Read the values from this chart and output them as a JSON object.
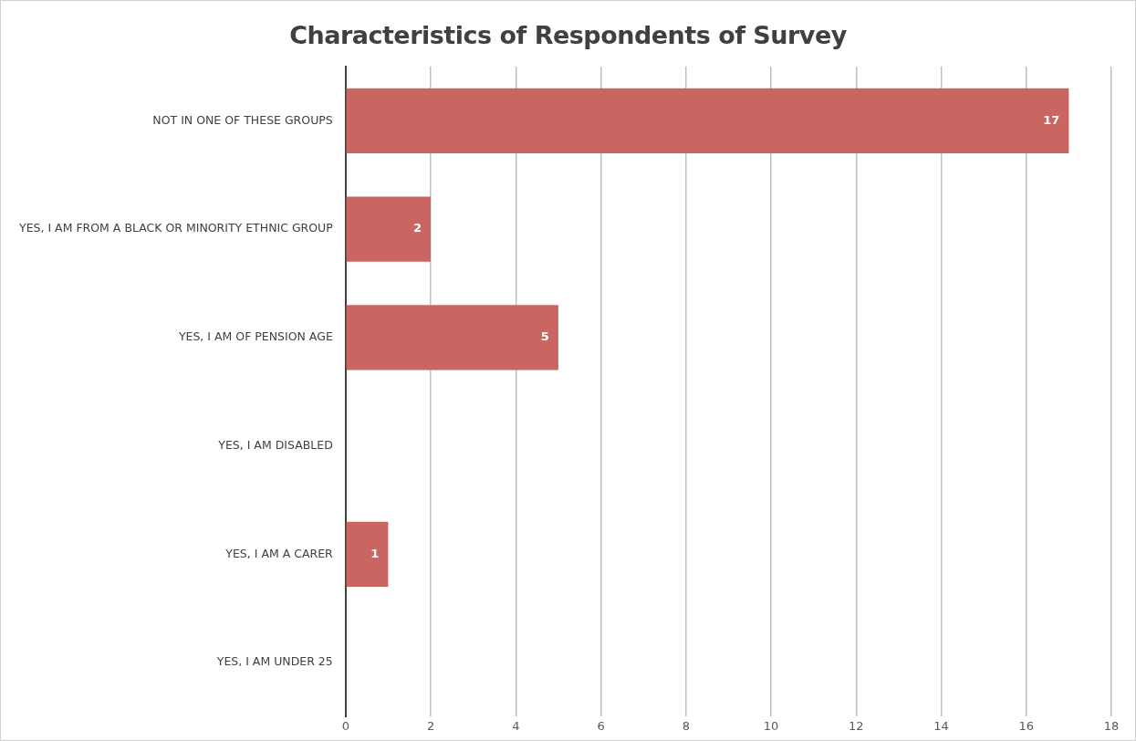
{
  "chart_data": {
    "type": "bar",
    "orientation": "horizontal",
    "title": "Characteristics of Respondents of Survey",
    "categories": [
      "NOT IN ONE OF THESE GROUPS",
      "YES, I AM FROM A BLACK OR MINORITY ETHNIC GROUP",
      "YES, I AM OF PENSION AGE",
      "YES, I AM DISABLED",
      "YES, I AM A CARER",
      "YES, I AM UNDER 25"
    ],
    "values": [
      17,
      2,
      5,
      0,
      1,
      0
    ],
    "value_labels": [
      "17",
      "2",
      "5",
      null,
      "1",
      null
    ],
    "color": "#c96662",
    "xlim": [
      0,
      18
    ],
    "xticks": [
      0,
      2,
      4,
      6,
      8,
      10,
      12,
      14,
      16,
      18
    ],
    "grid": "x",
    "legend": false
  }
}
